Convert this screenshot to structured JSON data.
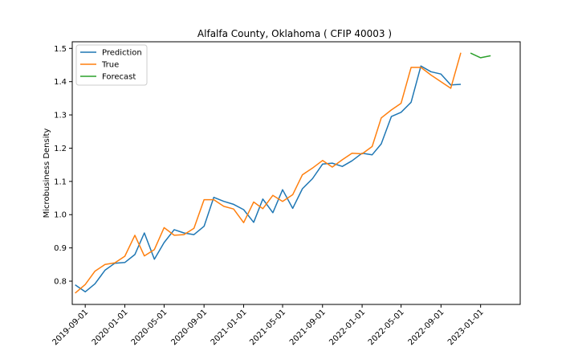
{
  "chart_data": {
    "type": "line",
    "title": "Alfalfa County, Oklahoma ( CFIP 40003 )",
    "xlabel": "",
    "ylabel": "Microbusiness Density",
    "ylim": [
      0.73,
      1.52
    ],
    "xlim": [
      "2019-07-23",
      "2023-05-03"
    ],
    "yticks": [
      0.8,
      0.9,
      1.0,
      1.1,
      1.2,
      1.3,
      1.4,
      1.5
    ],
    "ytick_labels": [
      "0.8",
      "0.9",
      "1.0",
      "1.1",
      "1.2",
      "1.3",
      "1.4",
      "1.5"
    ],
    "xticks": [
      "2019-09-01",
      "2020-01-01",
      "2020-05-01",
      "2020-09-01",
      "2021-01-01",
      "2021-05-01",
      "2021-09-01",
      "2022-01-01",
      "2022-05-01",
      "2022-09-01",
      "2023-01-01"
    ],
    "xtick_labels": [
      "2019-09-01",
      "2020-01-01",
      "2020-05-01",
      "2020-09-01",
      "2021-01-01",
      "2021-05-01",
      "2021-09-01",
      "2022-01-01",
      "2022-05-01",
      "2022-09-01",
      "2023-01-01"
    ],
    "grid": false,
    "legend": {
      "position": "top-left",
      "entries": [
        "Prediction",
        "True",
        "Forecast"
      ]
    },
    "series": [
      {
        "name": "Prediction",
        "color": "#1f77b4",
        "x": [
          "2019-08-01",
          "2019-09-01",
          "2019-10-01",
          "2019-11-01",
          "2019-12-01",
          "2020-01-01",
          "2020-02-01",
          "2020-03-01",
          "2020-04-01",
          "2020-05-01",
          "2020-06-01",
          "2020-07-01",
          "2020-08-01",
          "2020-09-01",
          "2020-10-01",
          "2020-11-01",
          "2020-12-01",
          "2021-01-01",
          "2021-02-01",
          "2021-03-01",
          "2021-04-01",
          "2021-05-01",
          "2021-06-01",
          "2021-07-01",
          "2021-08-01",
          "2021-09-01",
          "2021-10-01",
          "2021-11-01",
          "2021-12-01",
          "2022-01-01",
          "2022-02-01",
          "2022-03-01",
          "2022-04-01",
          "2022-05-01",
          "2022-06-01",
          "2022-07-01",
          "2022-08-01",
          "2022-09-01",
          "2022-10-01",
          "2022-11-01",
          "2022-12-01"
        ],
        "y": [
          0.789,
          0.768,
          0.792,
          0.833,
          0.854,
          0.856,
          0.88,
          0.945,
          0.866,
          0.916,
          0.955,
          0.945,
          0.94,
          0.965,
          1.052,
          1.04,
          1.031,
          1.015,
          0.977,
          1.047,
          1.006,
          1.075,
          1.019,
          1.078,
          1.108,
          1.152,
          1.155,
          1.145,
          1.162,
          1.185,
          1.18,
          1.213,
          1.295,
          1.308,
          1.338,
          1.447,
          1.43,
          1.423,
          1.39,
          1.392,
          null
        ]
      },
      {
        "name": "True",
        "color": "#ff7f0e",
        "x": [
          "2019-08-01",
          "2019-09-01",
          "2019-10-01",
          "2019-11-01",
          "2019-12-01",
          "2020-01-01",
          "2020-02-01",
          "2020-03-01",
          "2020-04-01",
          "2020-05-01",
          "2020-06-01",
          "2020-07-01",
          "2020-08-01",
          "2020-09-01",
          "2020-10-01",
          "2020-11-01",
          "2020-12-01",
          "2021-01-01",
          "2021-02-01",
          "2021-03-01",
          "2021-04-01",
          "2021-05-01",
          "2021-06-01",
          "2021-07-01",
          "2021-08-01",
          "2021-09-01",
          "2021-10-01",
          "2021-11-01",
          "2021-12-01",
          "2022-01-01",
          "2022-02-01",
          "2022-03-01",
          "2022-04-01",
          "2022-05-01",
          "2022-06-01",
          "2022-07-01",
          "2022-08-01",
          "2022-09-01",
          "2022-10-01",
          "2022-11-01",
          "2022-12-01"
        ],
        "y": [
          0.764,
          0.79,
          0.83,
          0.85,
          0.855,
          0.875,
          0.938,
          0.876,
          0.895,
          0.961,
          0.938,
          0.94,
          0.959,
          1.045,
          1.045,
          1.025,
          1.017,
          0.976,
          1.038,
          1.018,
          1.058,
          1.04,
          1.06,
          1.12,
          1.14,
          1.163,
          1.143,
          1.165,
          1.185,
          1.183,
          1.205,
          1.291,
          1.315,
          1.335,
          1.443,
          1.443,
          1.42,
          1.4,
          1.38,
          1.487,
          null
        ]
      },
      {
        "name": "Forecast",
        "color": "#2ca02c",
        "x": [
          "2022-12-01",
          "2023-01-01",
          "2023-02-01"
        ],
        "y": [
          1.486,
          1.472,
          1.478
        ]
      }
    ]
  }
}
